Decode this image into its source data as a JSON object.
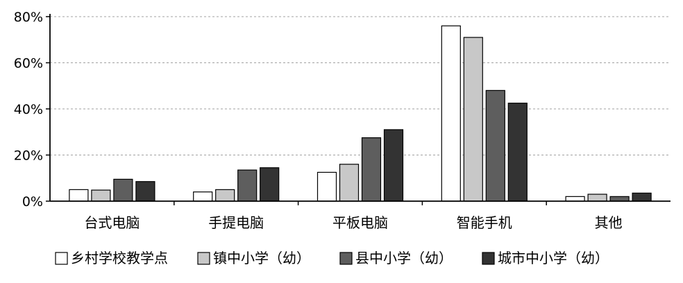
{
  "chart_data": {
    "type": "bar",
    "categories": [
      "台式电脑",
      "手提电脑",
      "平板电脑",
      "智能手机",
      "其他"
    ],
    "series": [
      {
        "name": "乡村学校教学点",
        "color": "#ffffff",
        "values": [
          5,
          4,
          12.5,
          76,
          2
        ]
      },
      {
        "name": "镇中小学（幼）",
        "color": "#c8c8c8",
        "values": [
          4.8,
          5,
          16,
          71,
          3
        ]
      },
      {
        "name": "县中小学（幼）",
        "color": "#5e5e5e",
        "values": [
          9.5,
          13.5,
          27.5,
          48,
          2
        ]
      },
      {
        "name": "城市中小学（幼）",
        "color": "#333333",
        "values": [
          8.5,
          14.5,
          31,
          42.5,
          3.5
        ]
      }
    ],
    "y_ticks": [
      "0%",
      "20%",
      "40%",
      "60%",
      "80%"
    ],
    "ylim": [
      0,
      80
    ],
    "grid": true,
    "legend_position": "bottom"
  }
}
